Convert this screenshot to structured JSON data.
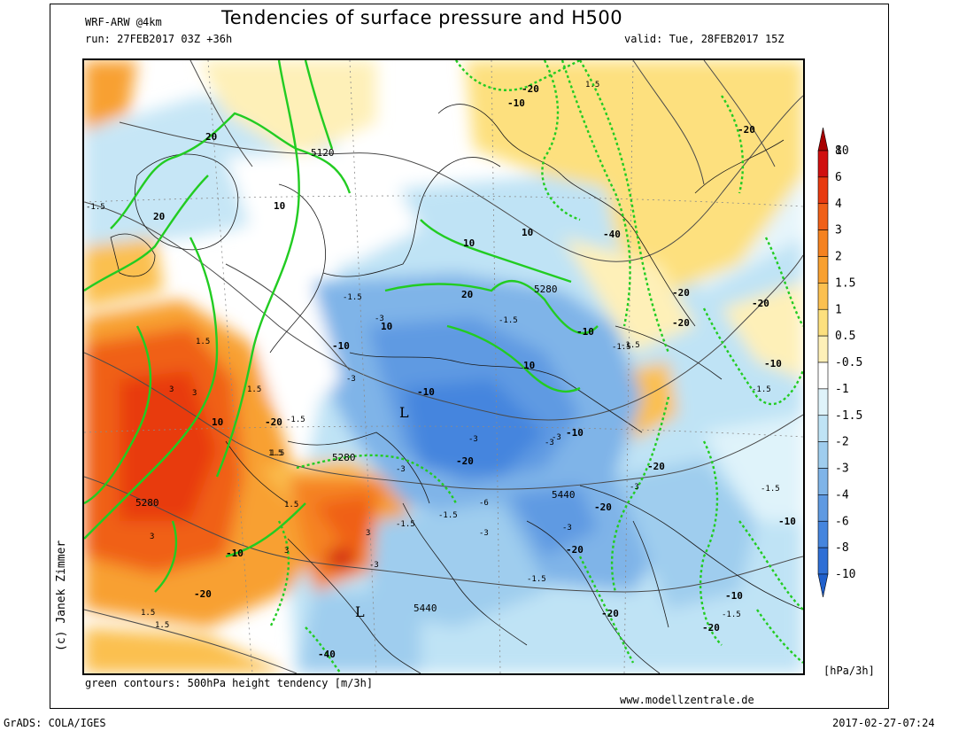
{
  "header": {
    "model": "WRF-ARW @4km",
    "title": "Tendencies of surface pressure and H500",
    "run": "run: 27FEB2017 03Z +36h",
    "valid": "valid: Tue, 28FEB2017 15Z"
  },
  "footer": {
    "credit": "(c) Janek Zimmer",
    "note": "green contours: 500hPa height tendency [m/3h]",
    "site": "www.modellzentrale.de",
    "grads": "GrADS: COLA/IGES",
    "timestamp": "2017-02-27-07:24"
  },
  "colorbar": {
    "unit": "[hPa/3h]",
    "bins": [
      {
        "label": "10",
        "color": "#a80000"
      },
      {
        "label": "8",
        "color": "#d01010"
      },
      {
        "label": "6",
        "color": "#e83a10"
      },
      {
        "label": "4",
        "color": "#f06018"
      },
      {
        "label": "3",
        "color": "#f58220"
      },
      {
        "label": "2",
        "color": "#f8a030"
      },
      {
        "label": "1.5",
        "color": "#fbc050"
      },
      {
        "label": "1",
        "color": "#fde07e"
      },
      {
        "label": "0.5",
        "color": "#fef0b8"
      },
      {
        "label": "-0.5",
        "color": "#ffffff"
      },
      {
        "label": "-1",
        "color": "#dff3fa"
      },
      {
        "label": "-1.5",
        "color": "#bfe3f5"
      },
      {
        "label": "-2",
        "color": "#9fcdee"
      },
      {
        "label": "-3",
        "color": "#7fb4e8"
      },
      {
        "label": "-4",
        "color": "#5f9ae2"
      },
      {
        "label": "-6",
        "color": "#4585de"
      },
      {
        "label": "-8",
        "color": "#2f6fd6"
      },
      {
        "label": "-10",
        "color": "#2060cc"
      }
    ]
  },
  "map": {
    "lows": [
      "L",
      "L"
    ],
    "h500_labels": [
      "5120",
      "5280",
      "5280",
      "5280",
      "5440",
      "5440"
    ],
    "green_labels": [
      "20",
      "20",
      "10",
      "10",
      "10",
      "10",
      "10",
      "10",
      "20",
      "-20",
      "-10",
      "-40",
      "-20",
      "-20",
      "-20",
      "-10",
      "-10",
      "-10",
      "-20",
      "-20",
      "-20",
      "-20",
      "-20",
      "-10",
      "-10",
      "-10",
      "-40",
      "-20",
      "-20",
      "-20",
      "-10",
      "-10",
      "-20"
    ],
    "pressure_labels": [
      "-1.5",
      "1.5",
      "-1.5",
      "-1.5",
      "-3",
      "-1.5",
      "3",
      "1.5",
      "-3",
      "-1.5",
      "-3",
      "-3",
      "-3",
      "-3",
      "-1.5",
      "-1.5",
      "-3",
      "-1.5",
      "1.5",
      "3",
      "-1.5",
      "-3",
      "-3",
      "1.5",
      "1.5",
      "-1.5",
      "1.5",
      "3",
      "3",
      "1.5",
      "-1.5",
      "-1.5",
      "-6",
      "3",
      "-3",
      "1.5"
    ]
  }
}
